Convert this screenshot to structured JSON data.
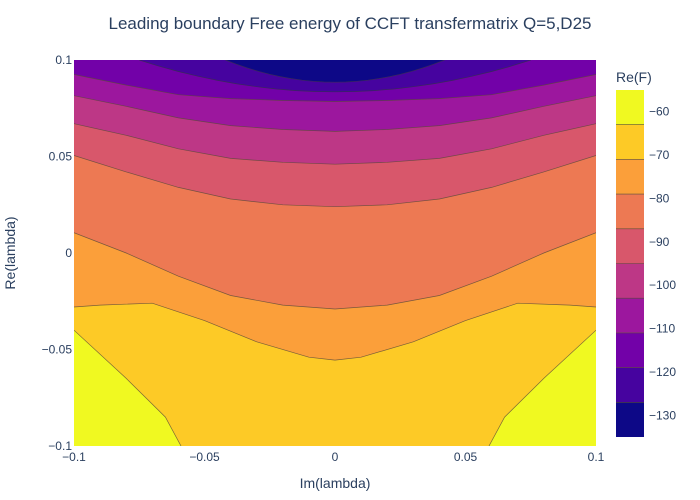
{
  "chart_data": {
    "type": "contour",
    "title": "Leading boundary Free energy of CCFT transfermatrix Q=5,D25",
    "xlabel": "Im(lambda)",
    "ylabel": "Re(lambda)",
    "xlim": [
      -0.1,
      0.1
    ],
    "ylim": [
      -0.1,
      0.1
    ],
    "x_ticks": [
      "−0.1",
      "−0.05",
      "0",
      "0.05",
      "0.1"
    ],
    "x_tick_values": [
      -0.1,
      -0.05,
      0,
      0.05,
      0.1
    ],
    "y_ticks": [
      "−0.1",
      "−0.05",
      "0",
      "0.05",
      "0.1"
    ],
    "y_tick_values": [
      -0.1,
      -0.05,
      0,
      0.05,
      0.1
    ],
    "colorbar": {
      "title": "Re(F)",
      "range": [
        -135,
        -55
      ],
      "ticks": [
        "−60",
        "−70",
        "−80",
        "−90",
        "−100",
        "−110",
        "−120",
        "−130"
      ],
      "tick_values": [
        -60,
        -70,
        -80,
        -90,
        -100,
        -110,
        -120,
        -130
      ]
    },
    "contour_levels": [
      -130,
      -125,
      -120,
      -115,
      -110,
      -105,
      -100,
      -95,
      -90,
      -85,
      -80,
      -75,
      -70,
      -65,
      -60
    ],
    "band_colors": [
      "#0d0887",
      "#46039f",
      "#7201a8",
      "#9c179e",
      "#bd3786",
      "#d8576b",
      "#ed7953",
      "#fb9f3a",
      "#fdca26",
      "#f0f921"
    ],
    "band_edges": [
      -135,
      -127,
      -119,
      -111,
      -103,
      -95,
      -87,
      -79,
      -71,
      -63,
      -55
    ],
    "contour_lines": [
      {
        "level": "boundary 1",
        "points": [
          [
            -0.1,
            0.1
          ],
          [
            0.1,
            0.1
          ]
        ]
      },
      {
        "level": "boundary 2",
        "points": [
          [
            -0.1,
            0.0925
          ],
          [
            -0.08,
            0.087
          ],
          [
            -0.06,
            0.082
          ],
          [
            -0.04,
            0.08
          ],
          [
            -0.02,
            0.079
          ],
          [
            0,
            0.0785
          ],
          [
            0.02,
            0.079
          ],
          [
            0.04,
            0.08
          ],
          [
            0.06,
            0.082
          ],
          [
            0.08,
            0.087
          ],
          [
            0.1,
            0.0925
          ]
        ]
      },
      {
        "level": "boundary 3",
        "points": [
          [
            -0.1,
            0.0815
          ],
          [
            -0.08,
            0.076
          ],
          [
            -0.06,
            0.07
          ],
          [
            -0.04,
            0.066
          ],
          [
            -0.02,
            0.064
          ],
          [
            0,
            0.063
          ],
          [
            0.02,
            0.064
          ],
          [
            0.04,
            0.066
          ],
          [
            0.06,
            0.07
          ],
          [
            0.08,
            0.076
          ],
          [
            0.1,
            0.0815
          ]
        ]
      },
      {
        "level": "boundary 4",
        "points": [
          [
            -0.1,
            0.067
          ],
          [
            -0.08,
            0.061
          ],
          [
            -0.06,
            0.054
          ],
          [
            -0.04,
            0.049
          ],
          [
            -0.02,
            0.047
          ],
          [
            0,
            0.046
          ],
          [
            0.02,
            0.047
          ],
          [
            0.04,
            0.049
          ],
          [
            0.06,
            0.054
          ],
          [
            0.08,
            0.061
          ],
          [
            0.1,
            0.067
          ]
        ]
      },
      {
        "level": "boundary 5",
        "points": [
          [
            -0.1,
            0.0505
          ],
          [
            -0.08,
            0.042
          ],
          [
            -0.06,
            0.034
          ],
          [
            -0.04,
            0.028
          ],
          [
            -0.02,
            0.025
          ],
          [
            0,
            0.024
          ],
          [
            0.02,
            0.025
          ],
          [
            0.04,
            0.028
          ],
          [
            0.06,
            0.034
          ],
          [
            0.08,
            0.042
          ],
          [
            0.1,
            0.0505
          ]
        ]
      },
      {
        "level": "boundary 6",
        "points": [
          [
            -0.1,
            0.0105
          ],
          [
            -0.08,
            0.0
          ],
          [
            -0.06,
            -0.012
          ],
          [
            -0.04,
            -0.022
          ],
          [
            -0.02,
            -0.027
          ],
          [
            0,
            -0.029
          ],
          [
            0.02,
            -0.027
          ],
          [
            0.04,
            -0.022
          ],
          [
            0.06,
            -0.012
          ],
          [
            0.08,
            0.0
          ],
          [
            0.1,
            0.0105
          ]
        ]
      },
      {
        "level": "boundary 7",
        "points": [
          [
            -0.1,
            -0.028
          ],
          [
            -0.09,
            -0.027
          ],
          [
            -0.07,
            -0.026
          ],
          [
            -0.05,
            -0.035
          ],
          [
            -0.03,
            -0.046
          ],
          [
            -0.01,
            -0.054
          ],
          [
            0,
            -0.0555
          ],
          [
            0.01,
            -0.054
          ],
          [
            0.03,
            -0.046
          ],
          [
            0.05,
            -0.035
          ],
          [
            0.07,
            -0.026
          ],
          [
            0.09,
            -0.027
          ],
          [
            0.1,
            -0.028
          ]
        ]
      },
      {
        "level": "boundary 8",
        "points": [
          [
            -0.1,
            -0.04
          ],
          [
            -0.08,
            -0.065
          ],
          [
            -0.065,
            -0.085
          ],
          [
            -0.059,
            -0.1
          ]
        ]
      },
      {
        "level": "boundary 8 (right)",
        "points": [
          [
            0.1,
            -0.04
          ],
          [
            0.08,
            -0.065
          ],
          [
            0.065,
            -0.085
          ],
          [
            0.059,
            -0.1
          ]
        ]
      }
    ]
  }
}
